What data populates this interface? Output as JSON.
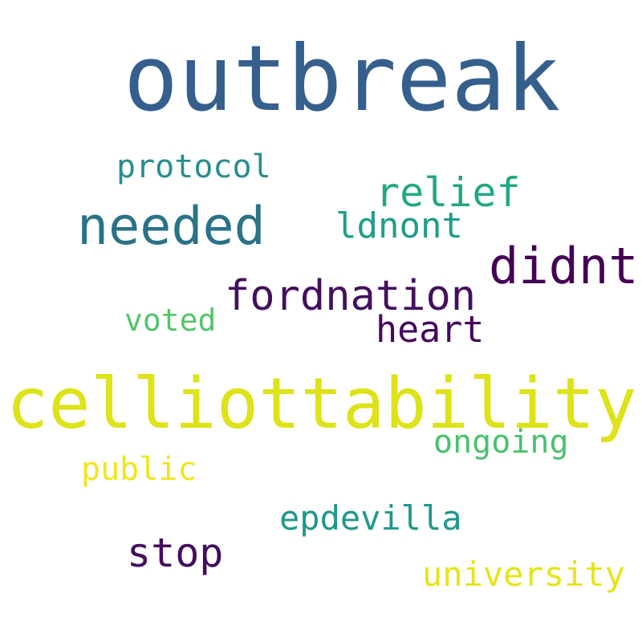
{
  "words": [
    {
      "id": "outbreak",
      "text": "outbreak",
      "color": "#355f8d"
    },
    {
      "id": "protocol",
      "text": "protocol",
      "color": "#2a8d8d"
    },
    {
      "id": "relief",
      "text": "relief",
      "color": "#22a884"
    },
    {
      "id": "needed",
      "text": "needed",
      "color": "#2a7287"
    },
    {
      "id": "ldnont",
      "text": "ldnont",
      "color": "#1f9e89"
    },
    {
      "id": "didnt",
      "text": "didnt",
      "color": "#440154"
    },
    {
      "id": "fordnation",
      "text": "fordnation",
      "color": "#440f5e"
    },
    {
      "id": "voted",
      "text": "voted",
      "color": "#54c568"
    },
    {
      "id": "heart",
      "text": "heart",
      "color": "#46085c"
    },
    {
      "id": "celliottability",
      "text": "celliottability",
      "color": "#dde318"
    },
    {
      "id": "ongoing",
      "text": "ongoing",
      "color": "#4ac16d"
    },
    {
      "id": "public",
      "text": "public",
      "color": "#f1e51d"
    },
    {
      "id": "epdevilla",
      "text": "epdevilla",
      "color": "#1f988b"
    },
    {
      "id": "stop",
      "text": "stop",
      "color": "#440d5d"
    },
    {
      "id": "university",
      "text": "university",
      "color": "#e6e419"
    }
  ]
}
